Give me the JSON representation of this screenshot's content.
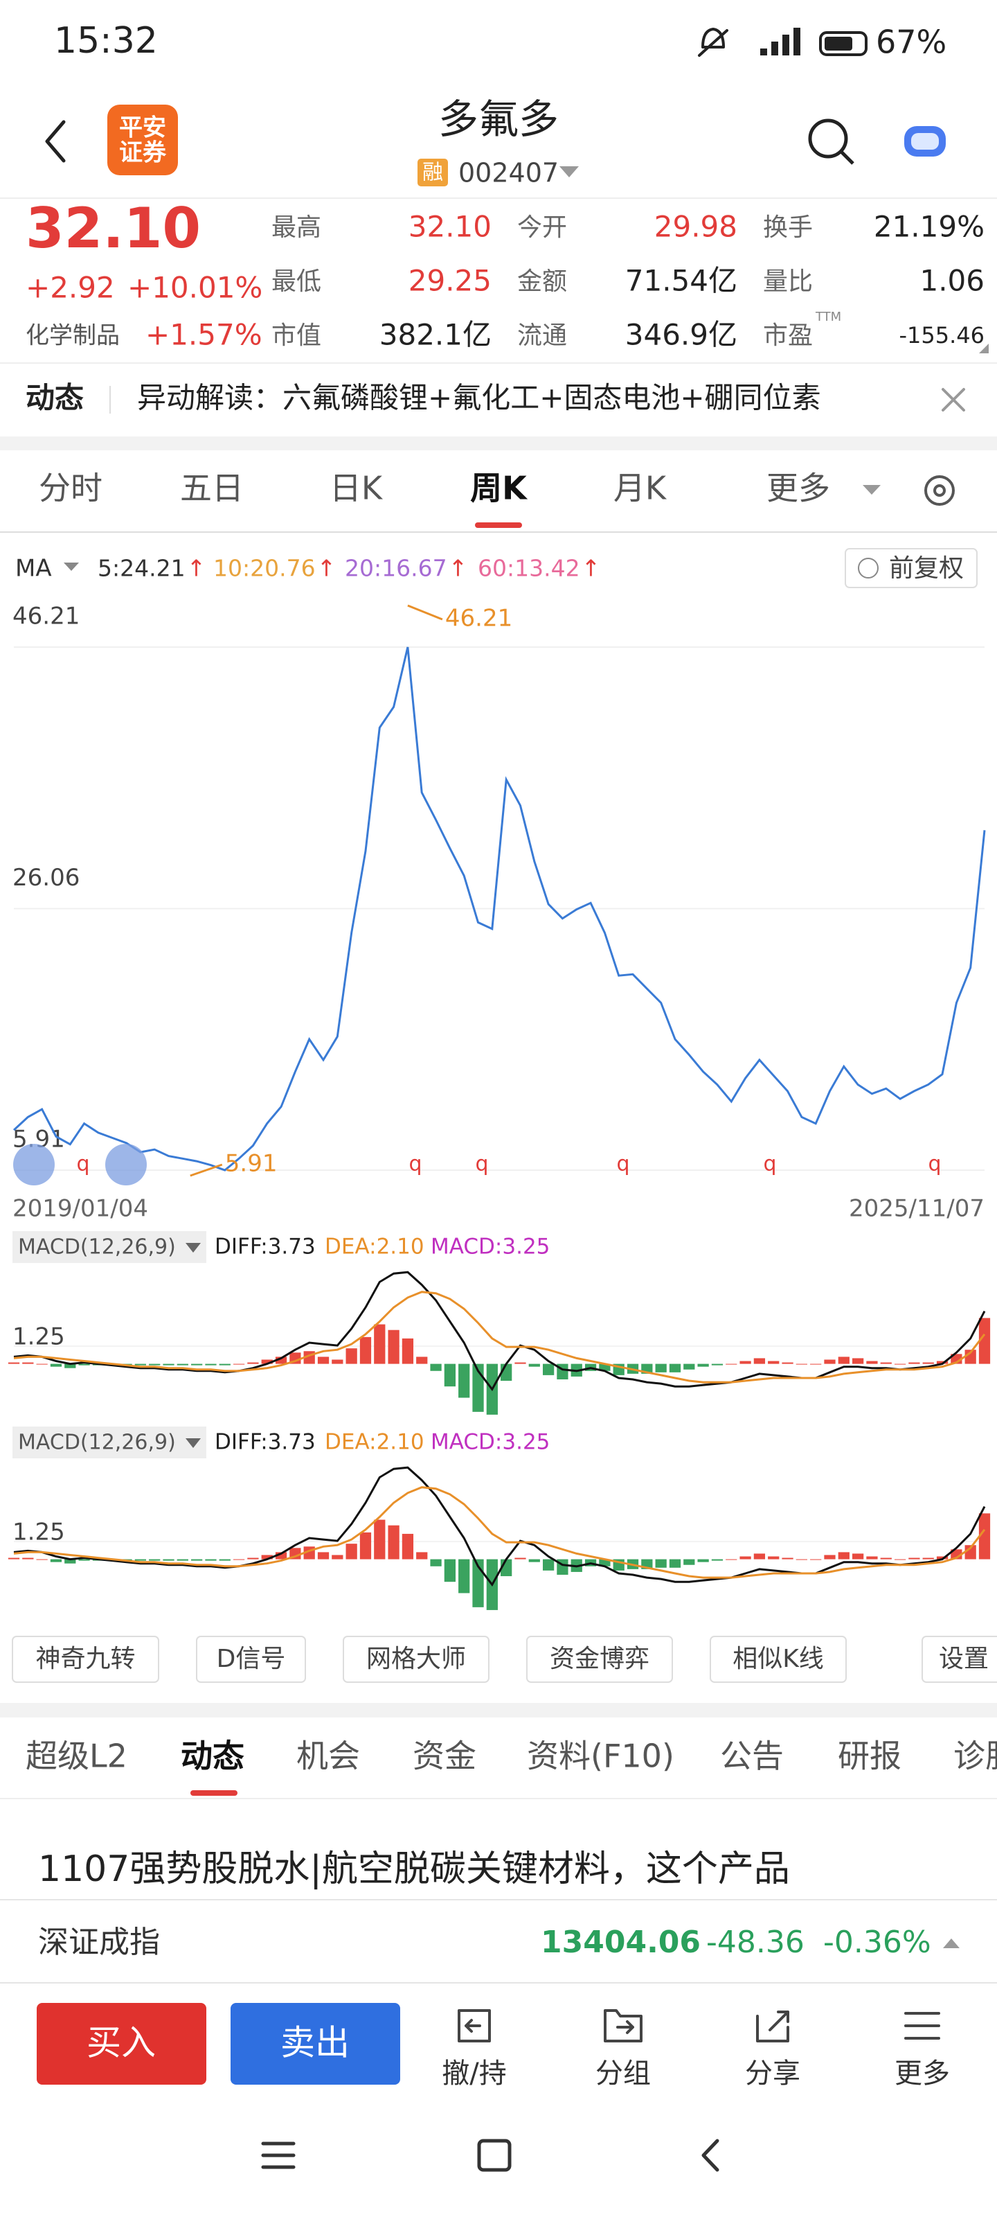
{
  "status_bar": {
    "time": "15:32",
    "battery": "67%"
  },
  "header": {
    "broker_logo": [
      "平安",
      "证券"
    ],
    "title": "多氟多",
    "badge": "融",
    "code": "002407"
  },
  "quote": {
    "price": "32.10",
    "change": "+2.92",
    "change_pct": "+10.01%",
    "sector": "化学制品",
    "sector_pct": "+1.57%",
    "pe_sup": "TTM",
    "stats": [
      [
        {
          "label": "最高",
          "value": "32.10",
          "color": "#e23c39"
        },
        {
          "label": "今开",
          "value": "29.98",
          "color": "#e23c39"
        },
        {
          "label": "换手",
          "value": "21.19%",
          "color": "#222222"
        }
      ],
      [
        {
          "label": "最低",
          "value": "29.25",
          "color": "#e23c39"
        },
        {
          "label": "金额",
          "value": "71.54亿",
          "color": "#222222"
        },
        {
          "label": "量比",
          "value": "1.06",
          "color": "#222222"
        }
      ],
      [
        {
          "label": "市值",
          "value": "382.1亿",
          "color": "#222222"
        },
        {
          "label": "流通",
          "value": "346.9亿",
          "color": "#222222"
        },
        {
          "label": "市盈",
          "value": "-155.46",
          "color": "#222222"
        }
      ]
    ]
  },
  "news_strip": {
    "tag": "动态",
    "text": "异动解读：六氟磷酸锂+氟化工+固态电池+硼同位素"
  },
  "period_tabs": {
    "items": [
      "分时",
      "五日",
      "日K",
      "周K",
      "月K",
      "更多"
    ],
    "active": 3
  },
  "chart": {
    "ma_label": "MA",
    "ma": [
      {
        "text": "5:24.21",
        "trend": "↑",
        "color": "#333333"
      },
      {
        "text": "10:20.76",
        "trend": "↑",
        "color": "#e8a33d"
      },
      {
        "text": "20:16.67",
        "trend": "↑",
        "color": "#a66bd3"
      },
      {
        "text": "60:13.42",
        "trend": "↑",
        "color": "#e86a9a"
      }
    ],
    "adjust": "前复权",
    "ylim": [
      5.91,
      46.21
    ],
    "yticks": [
      46.21,
      26.06,
      5.91
    ],
    "line_color": "#3a7bd5",
    "max_label": "46.21",
    "min_label": "5.91",
    "values": [
      9.0,
      10.0,
      10.6,
      8.5,
      7.9,
      9.5,
      8.8,
      8.4,
      8.0,
      7.3,
      7.5,
      7.0,
      6.8,
      6.6,
      6.3,
      5.91,
      6.8,
      7.8,
      9.5,
      10.8,
      13.5,
      16.0,
      14.4,
      16.2,
      24.2,
      30.5,
      40.0,
      41.6,
      46.21,
      35.0,
      32.9,
      30.7,
      28.6,
      25.0,
      24.5,
      36.0,
      34.0,
      29.7,
      26.4,
      25.3,
      26.0,
      26.5,
      24.2,
      20.9,
      21.0,
      19.9,
      18.8,
      16.0,
      14.8,
      13.5,
      12.5,
      11.2,
      13.0,
      14.4,
      13.2,
      12.0,
      10.0,
      9.5,
      12.0,
      13.9,
      12.5,
      11.8,
      12.2,
      11.4,
      12.0,
      12.5,
      13.3,
      18.8,
      21.5,
      32.1
    ],
    "signals": [
      "q",
      "q",
      "q",
      "q",
      "q",
      "q"
    ],
    "x_start": "2019/01/04",
    "x_end": "2025/11/07"
  },
  "macd": {
    "label": "MACD(12,26,9)",
    "diff_label": "DIFF:3.73",
    "dea_label": "DEA:2.10",
    "macd_label": "MACD:3.25",
    "ylim": [
      -3.8,
      7
    ],
    "yticks": [
      1.25
    ],
    "diff": [
      0.5,
      0.6,
      0.5,
      0.2,
      0.0,
      0.1,
      0.0,
      -0.1,
      -0.2,
      -0.3,
      -0.3,
      -0.4,
      -0.4,
      -0.5,
      -0.5,
      -0.6,
      -0.5,
      -0.3,
      0.0,
      0.4,
      1.0,
      1.5,
      1.4,
      1.3,
      2.5,
      4.0,
      5.8,
      6.4,
      6.5,
      5.6,
      4.5,
      3.0,
      1.5,
      -0.5,
      -1.8,
      0.0,
      1.3,
      1.0,
      0.2,
      -0.4,
      -0.5,
      -0.3,
      -0.5,
      -1.0,
      -1.1,
      -1.3,
      -1.4,
      -1.6,
      -1.6,
      -1.5,
      -1.4,
      -1.3,
      -1.0,
      -0.7,
      -0.8,
      -0.9,
      -1.0,
      -1.0,
      -0.6,
      -0.2,
      -0.2,
      -0.3,
      -0.3,
      -0.4,
      -0.3,
      -0.2,
      0.0,
      0.8,
      1.8,
      3.73
    ],
    "dea": [
      0.4,
      0.5,
      0.5,
      0.4,
      0.3,
      0.2,
      0.1,
      0.0,
      -0.1,
      -0.2,
      -0.2,
      -0.3,
      -0.3,
      -0.4,
      -0.4,
      -0.5,
      -0.5,
      -0.4,
      -0.3,
      -0.1,
      0.2,
      0.6,
      0.9,
      1.0,
      1.4,
      2.1,
      3.0,
      4.0,
      4.7,
      5.1,
      5.0,
      4.6,
      3.9,
      2.9,
      1.8,
      1.2,
      1.2,
      1.2,
      1.0,
      0.7,
      0.4,
      0.2,
      0.0,
      -0.2,
      -0.4,
      -0.6,
      -0.8,
      -1.0,
      -1.2,
      -1.3,
      -1.3,
      -1.3,
      -1.2,
      -1.1,
      -1.0,
      -1.0,
      -1.0,
      -1.0,
      -0.9,
      -0.7,
      -0.6,
      -0.5,
      -0.4,
      -0.4,
      -0.4,
      -0.3,
      -0.2,
      0.1,
      0.8,
      2.1
    ],
    "hist": [
      0.1,
      0.1,
      0,
      -0.2,
      -0.3,
      -0.1,
      -0.1,
      -0.1,
      -0.1,
      -0.1,
      -0.1,
      -0.1,
      -0.1,
      -0.1,
      -0.1,
      -0.1,
      0,
      0.1,
      0.3,
      0.5,
      0.8,
      0.9,
      0.5,
      0.3,
      1.1,
      1.9,
      2.8,
      2.4,
      1.8,
      0.5,
      -0.5,
      -1.6,
      -2.4,
      -3.4,
      -3.6,
      -1.2,
      0.1,
      -0.2,
      -0.8,
      -1.1,
      -0.9,
      -0.5,
      -0.5,
      -0.8,
      -0.7,
      -0.7,
      -0.6,
      -0.6,
      -0.4,
      -0.2,
      -0.1,
      0,
      0.2,
      0.4,
      0.2,
      0.1,
      0,
      0,
      0.3,
      0.5,
      0.4,
      0.2,
      0.1,
      0,
      0.1,
      0.1,
      0.2,
      0.7,
      1.0,
      3.25
    ]
  },
  "tools": [
    "神奇九转",
    "D信号",
    "网格大师",
    "资金博弈",
    "相似K线",
    "设置"
  ],
  "info_tabs": {
    "items": [
      "超级L2",
      "动态",
      "机会",
      "资金",
      "资料(F10)",
      "公告",
      "研报",
      "诊股"
    ],
    "active": 1
  },
  "headline": "1107强势股脱水|航空脱碳关键材料，这个产品",
  "index_bar": {
    "name": "深证成指",
    "value": "13404.06",
    "change": "-48.36",
    "change_pct": "-0.36%"
  },
  "actions": {
    "buy": "买入",
    "sell": "卖出",
    "items": [
      "撤/持",
      "分组",
      "分享",
      "更多"
    ]
  }
}
